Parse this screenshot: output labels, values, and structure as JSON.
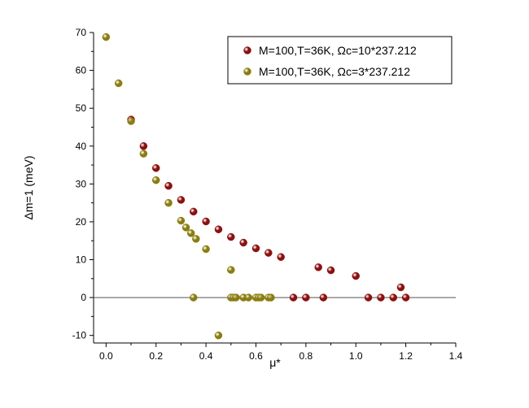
{
  "chart_data": {
    "type": "scatter",
    "xlabel": "μ*",
    "ylabel": "Δm=1 (meV)",
    "xlim": [
      -0.05,
      1.4
    ],
    "ylim": [
      -12,
      70
    ],
    "x_ticks": [
      "0.0",
      "0.2",
      "0.4",
      "0.6",
      "0.8",
      "1.0",
      "1.2",
      "1.4"
    ],
    "y_ticks": [
      "-10",
      "0",
      "10",
      "20",
      "30",
      "40",
      "50",
      "60",
      "70"
    ],
    "legend_position": "top-right",
    "zero_line": true,
    "grid": false,
    "series": [
      {
        "name": "M=100,T=36K, Ωc=10*237.212",
        "color": "#8b1010",
        "x": [
          0.1,
          0.15,
          0.2,
          0.25,
          0.3,
          0.35,
          0.4,
          0.45,
          0.5,
          0.55,
          0.6,
          0.65,
          0.7,
          0.75,
          0.8,
          0.85,
          0.87,
          0.9,
          1.0,
          1.05,
          1.1,
          1.15,
          1.18,
          1.2
        ],
        "y": [
          47.0,
          40.0,
          34.2,
          29.5,
          25.8,
          22.7,
          20.1,
          18.0,
          16.0,
          14.5,
          13.0,
          11.8,
          10.7,
          0.0,
          0.0,
          8.0,
          0.0,
          7.2,
          5.7,
          0.0,
          0.0,
          0.0,
          2.7,
          0.0
        ]
      },
      {
        "name": "M=100,T=36K, Ωc=3*237.212",
        "color": "#8a7d10",
        "x": [
          0.0,
          0.05,
          0.1,
          0.15,
          0.2,
          0.25,
          0.3,
          0.32,
          0.34,
          0.35,
          0.36,
          0.4,
          0.45,
          0.5,
          0.5,
          0.51,
          0.52,
          0.55,
          0.57,
          0.6,
          0.61,
          0.62,
          0.65,
          0.66
        ],
        "y": [
          68.8,
          56.6,
          46.6,
          38.0,
          31.0,
          25.0,
          20.3,
          18.5,
          17.0,
          0.0,
          15.5,
          12.8,
          -10.0,
          7.3,
          0.0,
          0.0,
          0.0,
          0.0,
          0.0,
          0.0,
          0.0,
          0.0,
          0.0,
          0.0
        ]
      }
    ]
  }
}
